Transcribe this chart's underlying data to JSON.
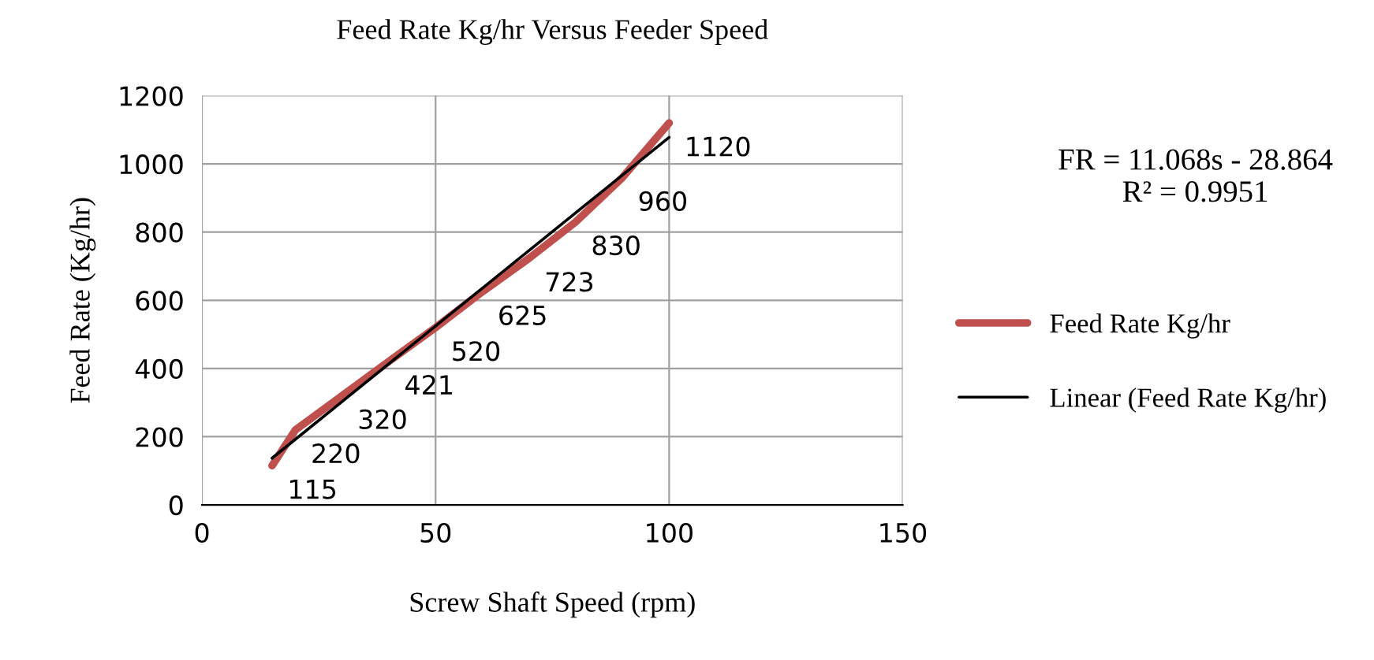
{
  "chart_data": {
    "type": "line",
    "title": "Feed Rate Kg/hr Versus Feeder Speed",
    "xlabel": "Screw Shaft Speed (rpm)",
    "ylabel": "Feed Rate (Kg/hr)",
    "series": [
      {
        "name": "Feed Rate Kg/hr",
        "color": "#c0504d",
        "x": [
          15,
          20,
          30,
          40,
          50,
          60,
          70,
          80,
          90,
          100
        ],
        "values": [
          115,
          220,
          320,
          421,
          520,
          625,
          723,
          830,
          960,
          1120
        ],
        "data_labels": true
      },
      {
        "name": "Linear (Feed Rate Kg/hr)",
        "color": "#000000",
        "type": "line",
        "x": [
          15,
          100
        ],
        "values": [
          137,
          1078
        ]
      }
    ],
    "xlim": [
      0,
      150
    ],
    "xticks": [
      0,
      50,
      100,
      150
    ],
    "ylim": [
      0,
      1200
    ],
    "yticks": [
      0,
      200,
      400,
      600,
      800,
      1000,
      1200
    ],
    "grid": true,
    "legend": "right",
    "marker": "none",
    "annotations": [
      "FR = 11.068s - 28.864\nR² = 0.9951"
    ]
  }
}
